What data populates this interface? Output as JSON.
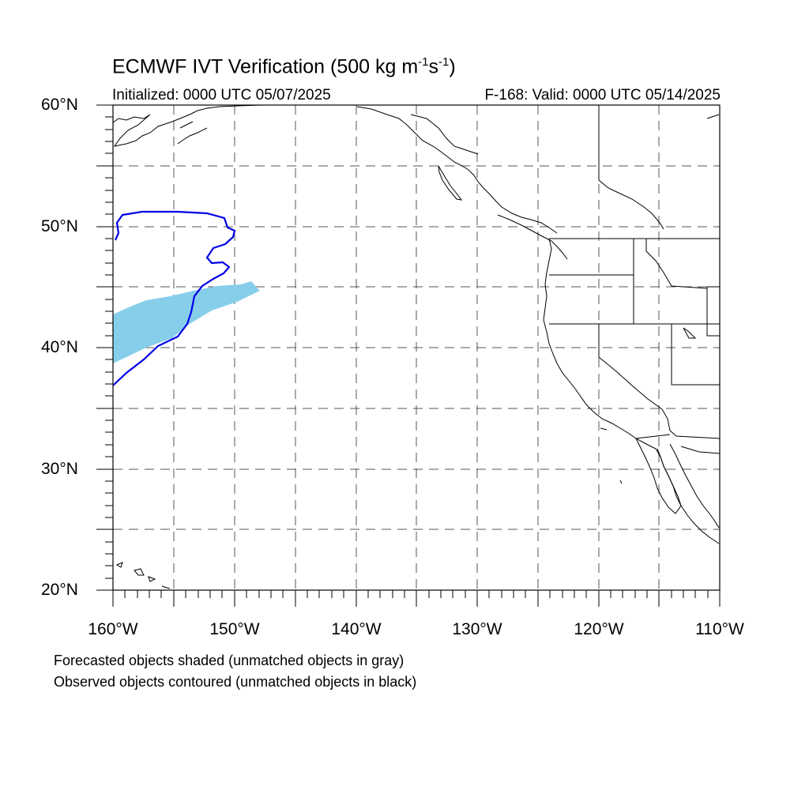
{
  "title_main": "ECMWF IVT Verification (500 kg m",
  "title_exp1": "-1",
  "title_mid": "s",
  "title_exp2": "-1",
  "title_end": ")",
  "init_text": "Initialized: 0000 UTC 05/07/2025",
  "valid_text": "F-168: Valid: 0000 UTC 05/14/2025",
  "lat_labels": [
    "60°N",
    "50°N",
    "40°N",
    "30°N",
    "20°N"
  ],
  "lon_labels": [
    "160°W",
    "150°W",
    "140°W",
    "130°W",
    "120°W",
    "110°W"
  ],
  "footnote_1": "Forecasted objects shaded (unmatched objects in gray)",
  "footnote_2": "Observed objects contoured (unmatched objects in black)",
  "colors": {
    "forecast_fill": "#87ceeb",
    "observed_contour": "#0000e6",
    "coast": "#000000",
    "grid": "#555555"
  }
}
